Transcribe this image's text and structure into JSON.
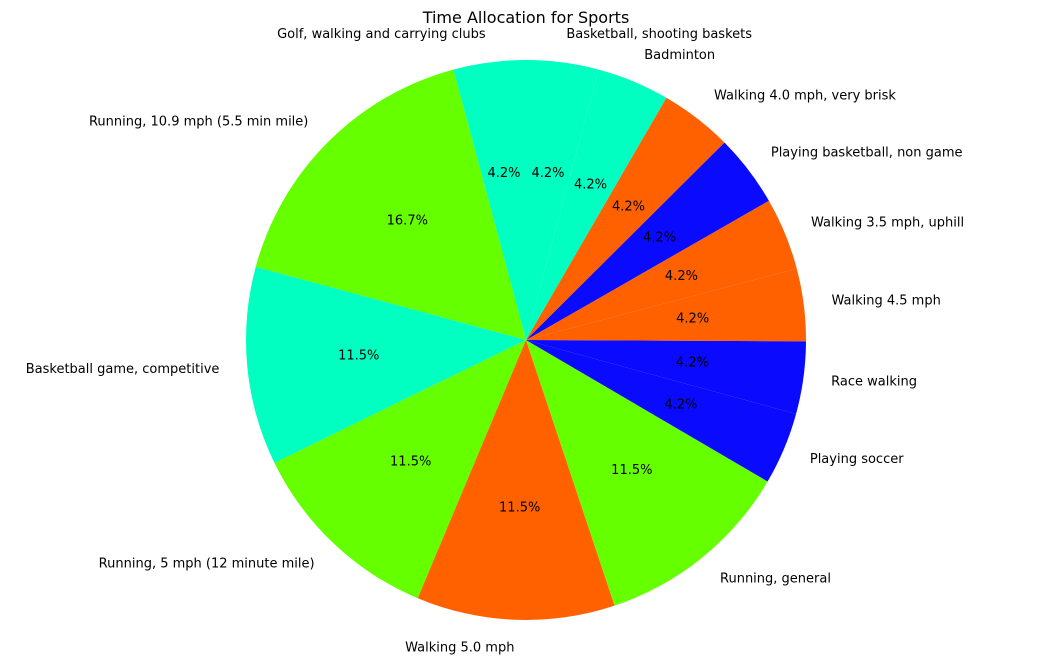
{
  "chart_data": {
    "type": "pie",
    "title": "Time Allocation for Sports",
    "start_angle_deg": 90,
    "direction": "counterclockwise",
    "slices": [
      {
        "label": "Golf, walking and carrying clubs",
        "value": 4.2,
        "pct_label": "4.2%",
        "color": "#00ffc0"
      },
      {
        "label": "Running, 10.9 mph (5.5 min mile)",
        "value": 16.7,
        "pct_label": "16.7%",
        "color": "#66ff00"
      },
      {
        "label": "Basketball game, competitive",
        "value": 11.5,
        "pct_label": "11.5%",
        "color": "#00ffc0"
      },
      {
        "label": "Running, 5 mph (12 minute mile)",
        "value": 11.5,
        "pct_label": "11.5%",
        "color": "#66ff00"
      },
      {
        "label": "Walking 5.0 mph",
        "value": 11.5,
        "pct_label": "11.5%",
        "color": "#ff6000"
      },
      {
        "label": "Running, general",
        "value": 11.5,
        "pct_label": "11.5%",
        "color": "#66ff00"
      },
      {
        "label": "Playing soccer",
        "value": 4.2,
        "pct_label": "4.2%",
        "color": "#0a0aff"
      },
      {
        "label": "Race walking",
        "value": 4.2,
        "pct_label": "4.2%",
        "color": "#0a0aff"
      },
      {
        "label": "Walking 4.5 mph",
        "value": 4.2,
        "pct_label": "4.2%",
        "color": "#ff6000"
      },
      {
        "label": "Walking 3.5 mph, uphill",
        "value": 4.2,
        "pct_label": "4.2%",
        "color": "#ff6000"
      },
      {
        "label": "Playing basketball, non game",
        "value": 4.2,
        "pct_label": "4.2%",
        "color": "#0a0aff"
      },
      {
        "label": "Walking 4.0 mph, very brisk",
        "value": 4.2,
        "pct_label": "4.2%",
        "color": "#ff6000"
      },
      {
        "label": "Badminton",
        "value": 4.2,
        "pct_label": "4.2%",
        "color": "#00ffc0"
      },
      {
        "label": "Basketball, shooting baskets",
        "value": 4.2,
        "pct_label": "4.2%",
        "color": "#00ffc0"
      }
    ]
  }
}
